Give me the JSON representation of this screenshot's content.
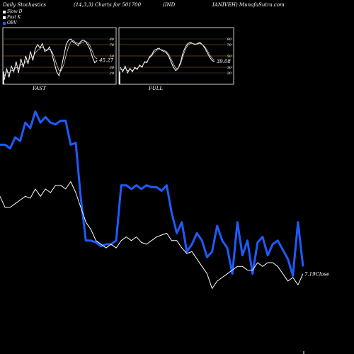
{
  "header": {
    "left": "Daily Stochastics",
    "params": "(14,3,3) Charts for 501700",
    "symbol": "(IND",
    "right": "IANIVEH) MunafaSutra.com"
  },
  "legend": [
    {
      "label": "Slow  D",
      "color": "#ffffff"
    },
    {
      "label": "Fast K",
      "color": "#ffffff"
    },
    {
      "label": "OBV",
      "color": "#1e5bff"
    }
  ],
  "panels": [
    {
      "label": "FAST",
      "value_label": "45.27",
      "ticks": [
        "80",
        "70",
        "50",
        "30",
        "20"
      ]
    },
    {
      "label": "FULL",
      "value_label": "39.08",
      "ticks": [
        "80",
        "70",
        "50",
        "30",
        "20"
      ]
    }
  ],
  "chart_data": [
    {
      "type": "line",
      "title": "FAST",
      "ylim": [
        0,
        100
      ],
      "series": [
        {
          "name": "Fast K",
          "values": [
            8,
            28,
            12,
            32,
            22,
            40,
            20,
            45,
            30,
            50,
            36,
            58,
            42,
            62,
            70,
            64,
            72,
            58,
            60,
            66,
            54,
            38,
            22,
            15,
            30,
            50,
            70,
            78,
            80,
            74,
            72,
            68,
            75,
            78,
            76,
            70,
            62,
            48,
            38,
            42
          ]
        },
        {
          "name": "Slow  D",
          "values": [
            15,
            22,
            20,
            24,
            25,
            30,
            28,
            35,
            34,
            40,
            40,
            48,
            48,
            55,
            60,
            63,
            66,
            62,
            60,
            62,
            58,
            48,
            35,
            24,
            24,
            35,
            52,
            66,
            75,
            77,
            74,
            72,
            72,
            74,
            76,
            74,
            68,
            58,
            48,
            45
          ]
        }
      ]
    },
    {
      "type": "line",
      "title": "FULL",
      "ylim": [
        0,
        100
      ],
      "series": [
        {
          "name": "Fast K",
          "values": [
            30,
            22,
            32,
            20,
            28,
            22,
            30,
            26,
            34,
            30,
            40,
            38,
            48,
            52,
            60,
            62,
            64,
            60,
            58,
            56,
            50,
            40,
            30,
            24,
            28,
            40,
            56,
            66,
            72,
            74,
            72,
            70,
            72,
            74,
            70,
            64,
            56,
            48,
            42,
            40
          ]
        },
        {
          "name": "Slow  D",
          "values": [
            26,
            26,
            28,
            24,
            26,
            24,
            28,
            28,
            32,
            32,
            38,
            40,
            46,
            50,
            56,
            60,
            62,
            61,
            60,
            58,
            53,
            45,
            36,
            28,
            28,
            36,
            50,
            62,
            69,
            72,
            72,
            71,
            71,
            72,
            70,
            66,
            60,
            52,
            46,
            42
          ]
        }
      ]
    },
    {
      "type": "line",
      "title": "OBV",
      "annotation": "7.19Close",
      "series": [
        {
          "name": "OBV",
          "values": [
            62,
            62,
            60,
            66,
            64,
            74,
            71,
            80,
            74,
            77,
            74,
            73,
            75,
            75,
            62,
            63,
            33,
            10,
            10,
            9,
            7,
            8,
            8,
            10,
            40,
            40,
            38,
            40,
            38,
            40,
            39,
            39,
            37,
            40,
            25,
            14,
            20,
            4,
            8,
            14,
            10,
            1,
            4,
            18,
            10,
            6,
            -8,
            20,
            2,
            10,
            -8,
            9,
            12,
            2,
            8,
            10,
            5,
            0,
            -9,
            20,
            -4
          ]
        },
        {
          "name": "Close",
          "values": [
            34,
            28,
            28,
            30,
            32,
            34,
            33,
            38,
            34,
            38,
            36,
            40,
            40,
            38,
            42,
            36,
            28,
            20,
            16,
            10,
            8,
            6,
            8,
            6,
            10,
            12,
            10,
            12,
            9,
            8,
            10,
            12,
            13,
            14,
            10,
            10,
            6,
            3,
            4,
            0,
            -4,
            -8,
            -16,
            -12,
            -10,
            -8,
            -6,
            -4,
            -4,
            -6,
            -6,
            -2,
            -4,
            -2,
            -2,
            -4,
            -8,
            -12,
            -10,
            -14,
            -8
          ]
        }
      ]
    }
  ]
}
